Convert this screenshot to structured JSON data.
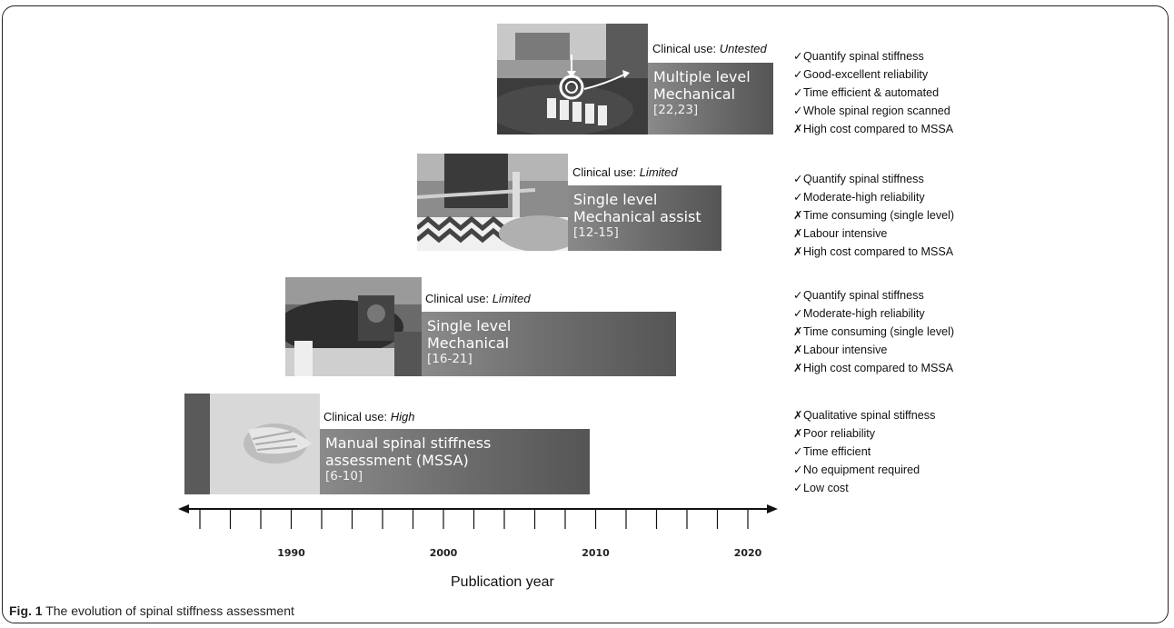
{
  "caption": {
    "label": "Fig. 1",
    "text": "The evolution of spinal stiffness assessment"
  },
  "axis": {
    "title": "Publication year",
    "ticks": [
      "1990",
      "2000",
      "2010",
      "2020"
    ]
  },
  "methods": [
    {
      "clinical_prefix": "Clinical use: ",
      "clinical_value": "Untested",
      "line1": "Multiple level",
      "line2": "Mechanical",
      "refs": "[22,23]",
      "notes": [
        {
          "mark": "✓",
          "text": "Quantify spinal stiffness"
        },
        {
          "mark": "✓",
          "text": "Good-excellent reliability"
        },
        {
          "mark": "✓",
          "text": "Time efficient & automated"
        },
        {
          "mark": "✓",
          "text": "Whole spinal region scanned"
        },
        {
          "mark": "✗",
          "text": "High cost compared to MSSA"
        }
      ]
    },
    {
      "clinical_prefix": "Clinical use: ",
      "clinical_value": "Limited",
      "line1": "Single level",
      "line2": "Mechanical assist",
      "refs": "[12-15]",
      "notes": [
        {
          "mark": "✓",
          "text": "Quantify spinal stiffness"
        },
        {
          "mark": "✓",
          "text": "Moderate-high reliability"
        },
        {
          "mark": "✗",
          "text": "Time consuming (single level)"
        },
        {
          "mark": "✗",
          "text": "Labour intensive"
        },
        {
          "mark": "✗",
          "text": "High cost compared to MSSA"
        }
      ]
    },
    {
      "clinical_prefix": "Clinical use: ",
      "clinical_value": "Limited",
      "line1": "Single level",
      "line2": "Mechanical",
      "refs": "[16-21]",
      "notes": [
        {
          "mark": "✓",
          "text": "Quantify spinal stiffness"
        },
        {
          "mark": "✓",
          "text": "Moderate-high reliability"
        },
        {
          "mark": "✗",
          "text": "Time consuming (single level)"
        },
        {
          "mark": "✗",
          "text": "Labour intensive"
        },
        {
          "mark": "✗",
          "text": "High cost compared to MSSA"
        }
      ]
    },
    {
      "clinical_prefix": "Clinical use: ",
      "clinical_value": "High",
      "line1": "Manual spinal stiffness",
      "line2": "assessment (MSSA)",
      "refs": "[6-10]",
      "notes": [
        {
          "mark": "✗",
          "text": "Qualitative spinal stiffness"
        },
        {
          "mark": "✗",
          "text": "Poor reliability"
        },
        {
          "mark": "✓",
          "text": "Time efficient"
        },
        {
          "mark": "✓",
          "text": "No equipment required"
        },
        {
          "mark": "✓",
          "text": "Low cost"
        }
      ]
    }
  ]
}
